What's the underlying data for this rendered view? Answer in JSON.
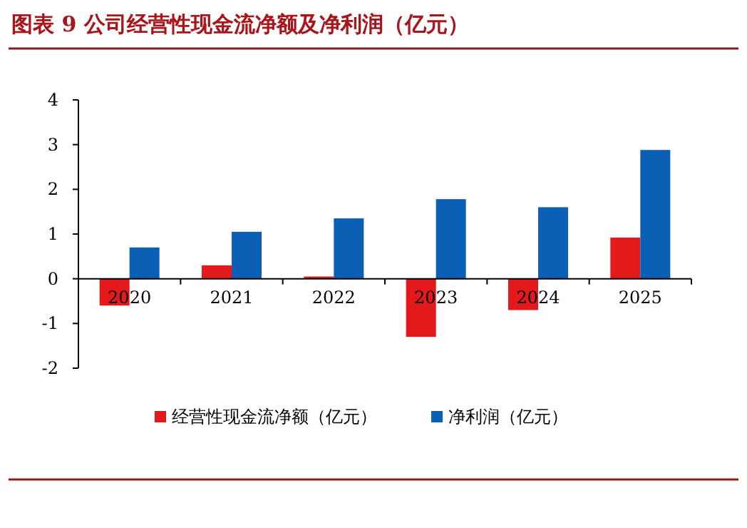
{
  "chart_data": {
    "type": "bar",
    "title": "图表 9 公司经营性现金流净额及净利润（亿元）",
    "categories": [
      "2020",
      "2021",
      "2022",
      "2023",
      "2024",
      "2025"
    ],
    "series": [
      {
        "name": "经营性现金流净额（亿元）",
        "color": "#e3191c",
        "values": [
          -0.6,
          0.3,
          0.05,
          -1.3,
          -0.7,
          0.92
        ]
      },
      {
        "name": "净利润（亿元）",
        "color": "#0b5fb5",
        "values": [
          0.7,
          1.05,
          1.35,
          1.78,
          1.6,
          2.88
        ]
      }
    ],
    "ylim": [
      -2,
      4
    ],
    "yticks": [
      -2,
      -1,
      0,
      1,
      2,
      3,
      4
    ],
    "legend": "bottom"
  }
}
